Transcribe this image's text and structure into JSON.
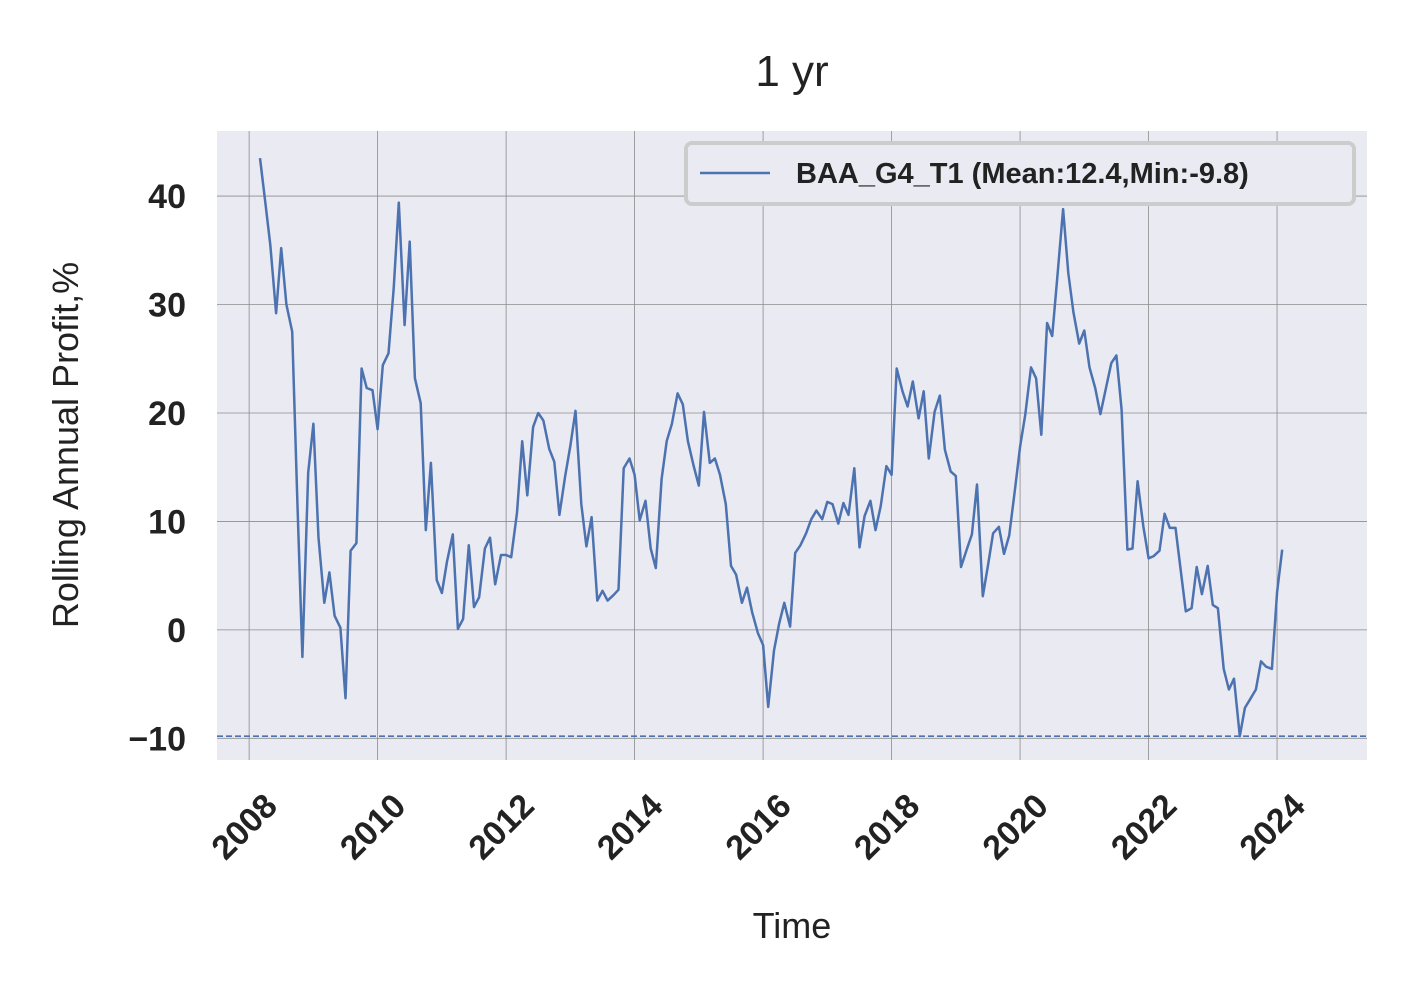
{
  "chart_data": {
    "type": "line",
    "title": "1 yr",
    "xlabel": "Time",
    "ylabel": "Rolling Annual Profit,%",
    "xlim": [
      2007.5,
      2025.4
    ],
    "ylim": [
      -12,
      46
    ],
    "xticks": [
      2008,
      2010,
      2012,
      2014,
      2016,
      2018,
      2020,
      2022,
      2024
    ],
    "xtick_labels": [
      "2008",
      "2010",
      "2012",
      "2014",
      "2016",
      "2018",
      "2020",
      "2022",
      "2024"
    ],
    "yticks": [
      -10,
      0,
      10,
      20,
      30,
      40
    ],
    "ytick_labels": [
      "−10",
      "0",
      "10",
      "20",
      "30",
      "40"
    ],
    "grid": true,
    "legend_position": "top-right",
    "colors": {
      "series": "#4c72b0",
      "plot_background": "#eaeaf2",
      "grid": "#8c8c8c"
    },
    "reference_line": {
      "y": -9.8,
      "style": "dashed",
      "color": "#4c72b0"
    },
    "series": [
      {
        "name": "BAA_G4_T1 (Mean:12.4,Min:-9.8)",
        "x": [
          2008.17,
          2008.25,
          2008.33,
          2008.42,
          2008.5,
          2008.58,
          2008.67,
          2008.75,
          2008.83,
          2008.92,
          2009.0,
          2009.08,
          2009.17,
          2009.25,
          2009.33,
          2009.42,
          2009.5,
          2009.58,
          2009.67,
          2009.75,
          2009.83,
          2009.92,
          2010.0,
          2010.08,
          2010.17,
          2010.25,
          2010.33,
          2010.42,
          2010.5,
          2010.58,
          2010.67,
          2010.75,
          2010.83,
          2010.92,
          2011.0,
          2011.08,
          2011.17,
          2011.25,
          2011.33,
          2011.42,
          2011.5,
          2011.58,
          2011.67,
          2011.75,
          2011.83,
          2011.92,
          2012.0,
          2012.08,
          2012.17,
          2012.25,
          2012.33,
          2012.42,
          2012.5,
          2012.58,
          2012.67,
          2012.75,
          2012.83,
          2012.92,
          2013.0,
          2013.08,
          2013.17,
          2013.25,
          2013.33,
          2013.42,
          2013.5,
          2013.58,
          2013.67,
          2013.75,
          2013.83,
          2013.92,
          2014.0,
          2014.08,
          2014.17,
          2014.25,
          2014.33,
          2014.42,
          2014.5,
          2014.58,
          2014.67,
          2014.75,
          2014.83,
          2014.92,
          2015.0,
          2015.08,
          2015.17,
          2015.25,
          2015.33,
          2015.42,
          2015.5,
          2015.58,
          2015.67,
          2015.75,
          2015.83,
          2015.92,
          2016.0,
          2016.08,
          2016.17,
          2016.25,
          2016.33,
          2016.42,
          2016.5,
          2016.58,
          2016.67,
          2016.75,
          2016.83,
          2016.92,
          2017.0,
          2017.08,
          2017.17,
          2017.25,
          2017.33,
          2017.42,
          2017.5,
          2017.58,
          2017.67,
          2017.75,
          2017.83,
          2017.92,
          2018.0,
          2018.08,
          2018.17,
          2018.25,
          2018.33,
          2018.42,
          2018.5,
          2018.58,
          2018.67,
          2018.75,
          2018.83,
          2018.92,
          2019.0,
          2019.08,
          2019.17,
          2019.25,
          2019.33,
          2019.42,
          2019.5,
          2019.58,
          2019.67,
          2019.75,
          2019.83,
          2019.92,
          2020.0,
          2020.08,
          2020.17,
          2020.25,
          2020.33,
          2020.42,
          2020.5,
          2020.58,
          2020.67,
          2020.75,
          2020.83,
          2020.92,
          2021.0,
          2021.08,
          2021.17,
          2021.25,
          2021.33,
          2021.42,
          2021.5,
          2021.58,
          2021.67,
          2021.75,
          2021.83,
          2021.92,
          2022.0,
          2022.08,
          2022.17,
          2022.25,
          2022.33,
          2022.42,
          2022.5,
          2022.58,
          2022.67,
          2022.75,
          2022.83,
          2022.92,
          2023.0,
          2023.08,
          2023.17,
          2023.25,
          2023.33,
          2023.42,
          2023.5,
          2023.58,
          2023.67,
          2023.75,
          2023.83,
          2023.92,
          2024.0,
          2024.08
        ],
        "y": [
          43.5,
          39.5,
          35.5,
          29.2,
          35.2,
          30.0,
          27.5,
          12.0,
          -2.5,
          14.5,
          19.0,
          8.5,
          2.5,
          5.3,
          1.3,
          0.2,
          -6.3,
          7.3,
          8.0,
          24.1,
          22.3,
          22.1,
          18.5,
          24.4,
          25.5,
          31.5,
          39.4,
          28.1,
          35.8,
          23.2,
          20.9,
          9.2,
          15.4,
          4.6,
          3.4,
          6.3,
          8.8,
          0.1,
          1.0,
          7.8,
          2.1,
          3.0,
          7.5,
          8.5,
          4.2,
          6.9,
          6.9,
          6.7,
          10.8,
          17.4,
          12.4,
          18.7,
          20.0,
          19.3,
          16.7,
          15.5,
          10.6,
          14.2,
          17.0,
          20.2,
          11.6,
          7.7,
          10.4,
          2.7,
          3.6,
          2.7,
          3.2,
          3.7,
          14.9,
          15.8,
          14.3,
          10.1,
          11.9,
          7.5,
          5.7,
          13.9,
          17.4,
          19.0,
          21.8,
          20.8,
          17.4,
          15.1,
          13.3,
          20.1,
          15.4,
          15.8,
          14.3,
          11.6,
          5.9,
          5.1,
          2.5,
          3.9,
          1.6,
          -0.3,
          -1.4,
          -7.1,
          -1.9,
          0.6,
          2.5,
          0.3,
          7.1,
          7.8,
          8.9,
          10.2,
          11.0,
          10.2,
          11.8,
          11.6,
          9.8,
          11.7,
          10.6,
          14.9,
          7.6,
          10.5,
          11.9,
          9.2,
          11.4,
          15.1,
          14.3,
          24.1,
          22.0,
          20.6,
          22.9,
          19.5,
          22.0,
          15.8,
          20.1,
          21.6,
          16.6,
          14.6,
          14.2,
          5.8,
          7.4,
          8.8,
          13.4,
          3.1,
          5.9,
          8.9,
          9.5,
          7.0,
          8.7,
          12.9,
          16.9,
          19.8,
          24.2,
          23.2,
          18.0,
          28.3,
          27.1,
          32.5,
          38.8,
          32.9,
          29.3,
          26.4,
          27.6,
          24.2,
          22.3,
          19.9,
          22.1,
          24.6,
          25.3,
          20.3,
          7.4,
          7.5,
          13.7,
          9.5,
          6.6,
          6.8,
          7.3,
          10.7,
          9.4,
          9.4,
          5.5,
          1.7,
          2.0,
          5.8,
          3.3,
          5.9,
          2.3,
          2.0,
          -3.6,
          -5.5,
          -4.5,
          -9.8,
          -7.2,
          -6.4,
          -5.5,
          -2.9,
          -3.4,
          -3.6,
          3.5,
          7.4
        ]
      }
    ]
  }
}
